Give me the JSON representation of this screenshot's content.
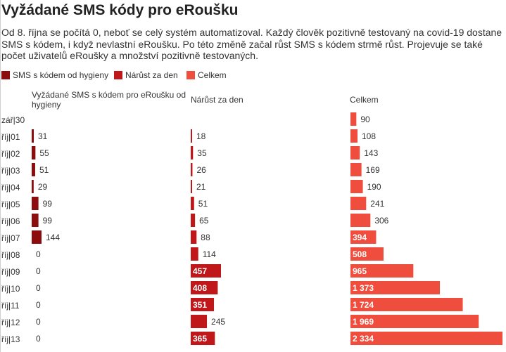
{
  "title": "Vyžádané SMS kódy pro eRoušku",
  "description": "Od 8. října se počítá 0, neboť se celý systém automatizoval. Každý člověk pozitivně testovaný na covid-19 dostane SMS s kódem, i když nevlastní eRoušku. Po této změně začal růst SMS s kódem strmě růst. Projevuje se také počet uživatelů eRoušky a množství pozitivně testovaných.",
  "chart_data": {
    "type": "bar",
    "categories": [
      "zář|30",
      "říj|01",
      "říj|02",
      "říj|03",
      "říj|04",
      "říj|05",
      "říj|06",
      "říj|07",
      "říj|08",
      "říj|09",
      "říj|10",
      "říj|11",
      "říj|12",
      "říj|13"
    ],
    "series": [
      {
        "name": "SMS s kódem od hygieny",
        "column_title": "Vyžádané SMS s kódem pro eRoušku od hygieny",
        "color": "#8b0d0d",
        "values": [
          null,
          31,
          55,
          51,
          29,
          99,
          99,
          144,
          0,
          0,
          0,
          0,
          0,
          0
        ],
        "labels": [
          "",
          "31",
          "55",
          "51",
          "29",
          "99",
          "99",
          "144",
          "0",
          "0",
          "0",
          "0",
          "0",
          "0"
        ]
      },
      {
        "name": "Nárůst za den",
        "column_title": "Nárůst za den",
        "color": "#c0171a",
        "values": [
          null,
          18,
          35,
          26,
          21,
          51,
          65,
          88,
          114,
          457,
          408,
          351,
          245,
          365
        ],
        "labels": [
          "",
          "18",
          "35",
          "26",
          "21",
          "51",
          "65",
          "88",
          "114",
          "457",
          "408",
          "351",
          "245",
          "365"
        ]
      },
      {
        "name": "Celkem",
        "column_title": "Celkem",
        "color": "#ef4d3d",
        "values": [
          90,
          108,
          143,
          169,
          190,
          241,
          306,
          394,
          508,
          965,
          1373,
          1724,
          1969,
          2334
        ],
        "labels": [
          "90",
          "108",
          "143",
          "169",
          "190",
          "241",
          "306",
          "394",
          "508",
          "965",
          "1 373",
          "1 724",
          "1 969",
          "2 334"
        ]
      }
    ],
    "grid": false,
    "legend": "top-left"
  }
}
